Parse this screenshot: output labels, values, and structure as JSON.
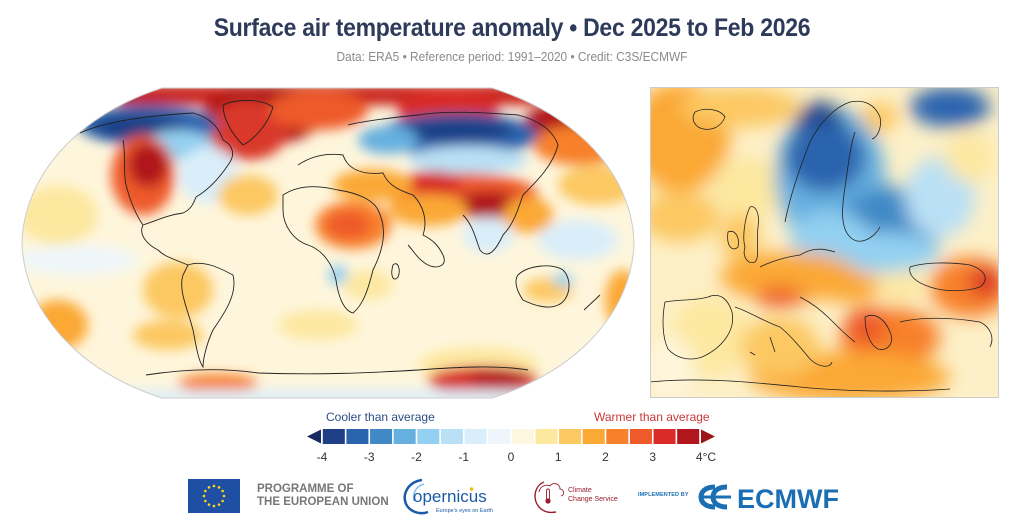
{
  "header": {
    "title": "Surface air temperature anomaly • Dec 2025 to Feb 2026",
    "subtitle": "Data: ERA5 • Reference period: 1991–2020 • Credit: C3S/ECMWF"
  },
  "maps": {
    "world": {
      "label": "Global surface air temperature anomaly map",
      "projection": "Robinson"
    },
    "europe": {
      "label": "Europe surface air temperature anomaly map"
    }
  },
  "colorbar": {
    "cooler_label": "Cooler than average",
    "warmer_label": "Warmer than average",
    "unit": "°C",
    "ticks": [
      "-4",
      "-3",
      "-2",
      "-1",
      "0",
      "1",
      "2",
      "3",
      "4°C"
    ],
    "range": [
      -4,
      4
    ],
    "step": 0.5,
    "extend": "both",
    "low_arrow_color": "#1a2a5e",
    "high_arrow_color": "#9b1418",
    "colors": [
      "#1f3f86",
      "#2a63ae",
      "#4189c6",
      "#66b0e0",
      "#93d0f1",
      "#b9e0f5",
      "#d9eefa",
      "#eef6fb",
      "#fdf7df",
      "#fde8a0",
      "#fcc862",
      "#fba834",
      "#f7802a",
      "#ee5a2a",
      "#d92b27",
      "#b0161c"
    ]
  },
  "logos": {
    "eu_text_line1": "PROGRAMME OF",
    "eu_text_line2": "THE EUROPEAN UNION",
    "copernicus_name": "opernicus",
    "copernicus_tagline": "Europe's eyes on Earth",
    "c3s_line1": "Climate",
    "c3s_line2": "Change Service",
    "implemented_by": "IMPLEMENTED BY",
    "ecmwf_name": "ECMWF"
  },
  "colors": {
    "title": "#2e3a5a",
    "subtitle": "#8a8a8a",
    "cooler": "#2a4d86",
    "warmer": "#c8383a",
    "coastline": "#222222",
    "ecmwf_blue": "#1a6fb4",
    "eu_blue": "#1f4fa3",
    "eu_star": "#ffd617",
    "c3s_red": "#9b1c2e",
    "copernicus_blue": "#1b5aa6"
  }
}
